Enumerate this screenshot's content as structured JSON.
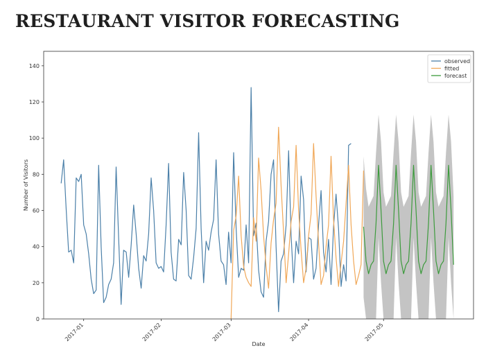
{
  "page": {
    "title": "RESTAURANT VISITOR FORECASTING"
  },
  "chart_data": {
    "type": "line",
    "title": "",
    "xlabel": "Date",
    "ylabel": "Number of Visitors",
    "ylim": [
      0,
      148
    ],
    "yticks": [
      0,
      20,
      40,
      60,
      80,
      100,
      120,
      140
    ],
    "xlim": [
      "2016-12-16",
      "2017-06-06"
    ],
    "xticks": [
      "2017-01",
      "2017-02",
      "2017-03",
      "2017-04",
      "2017-05"
    ],
    "grid": false,
    "legend_position": "top-right",
    "colors": {
      "observed": "#4a7fa8",
      "fitted": "#f0a757",
      "forecast": "#3c9a3c",
      "band": "#c4c4c4"
    },
    "series": [
      {
        "name": "observed",
        "x_start": "2016-12-23",
        "values": [
          75,
          88,
          61,
          37,
          38,
          31,
          78,
          76,
          80,
          52,
          47,
          36,
          22,
          14,
          16,
          85,
          40,
          9,
          12,
          19,
          22,
          31,
          84,
          45,
          8,
          38,
          37,
          23,
          41,
          63,
          47,
          28,
          17,
          35,
          32,
          47,
          78,
          60,
          31,
          28,
          29,
          26,
          52,
          86,
          37,
          22,
          21,
          44,
          41,
          81,
          60,
          24,
          22,
          34,
          50,
          103,
          50,
          20,
          43,
          38,
          48,
          55,
          88,
          47,
          32,
          30,
          19,
          48,
          31,
          92,
          50,
          23,
          28,
          27,
          52,
          31,
          128,
          46,
          53,
          27,
          15,
          12,
          43,
          54,
          80,
          88,
          40,
          4,
          32,
          36,
          52,
          93,
          46,
          20,
          43,
          36,
          79,
          66,
          26,
          45,
          44,
          22,
          28,
          52,
          71,
          37,
          26,
          44,
          19,
          51,
          69,
          50,
          18,
          30,
          21,
          96,
          97
        ]
      },
      {
        "name": "fitted",
        "x_start": "2017-03-01",
        "values": [
          0,
          49,
          57,
          79,
          46,
          29,
          23,
          20,
          18,
          56,
          43,
          89,
          71,
          46,
          29,
          17,
          42,
          55,
          64,
          106,
          74,
          48,
          20,
          36,
          54,
          62,
          96,
          60,
          38,
          20,
          28,
          46,
          58,
          97,
          68,
          42,
          19,
          24,
          40,
          52,
          90,
          55,
          34,
          18,
          31,
          43,
          64,
          85,
          52,
          32,
          19,
          24,
          30,
          82
        ]
      },
      {
        "name": "forecast",
        "x_start": "2017-04-23",
        "values": [
          51,
          32,
          25,
          30,
          32,
          53,
          85,
          60,
          32,
          25,
          30,
          32,
          53,
          85,
          60,
          32,
          25,
          30,
          32,
          53,
          85,
          60,
          32,
          25,
          30,
          32,
          53,
          85,
          60,
          32,
          25,
          30,
          32,
          53,
          85,
          60,
          30
        ],
        "lower": [
          12,
          0,
          0,
          0,
          0,
          0,
          45,
          20,
          0,
          0,
          0,
          0,
          0,
          45,
          20,
          0,
          0,
          0,
          0,
          0,
          45,
          20,
          0,
          0,
          0,
          0,
          0,
          45,
          20,
          0,
          0,
          0,
          0,
          0,
          45,
          20,
          0
        ],
        "upper": [
          90,
          72,
          62,
          65,
          68,
          92,
          113,
          98,
          70,
          62,
          65,
          68,
          92,
          113,
          98,
          70,
          62,
          65,
          68,
          92,
          113,
          98,
          70,
          62,
          65,
          68,
          92,
          113,
          98,
          70,
          62,
          65,
          68,
          92,
          113,
          98,
          68
        ]
      }
    ]
  }
}
